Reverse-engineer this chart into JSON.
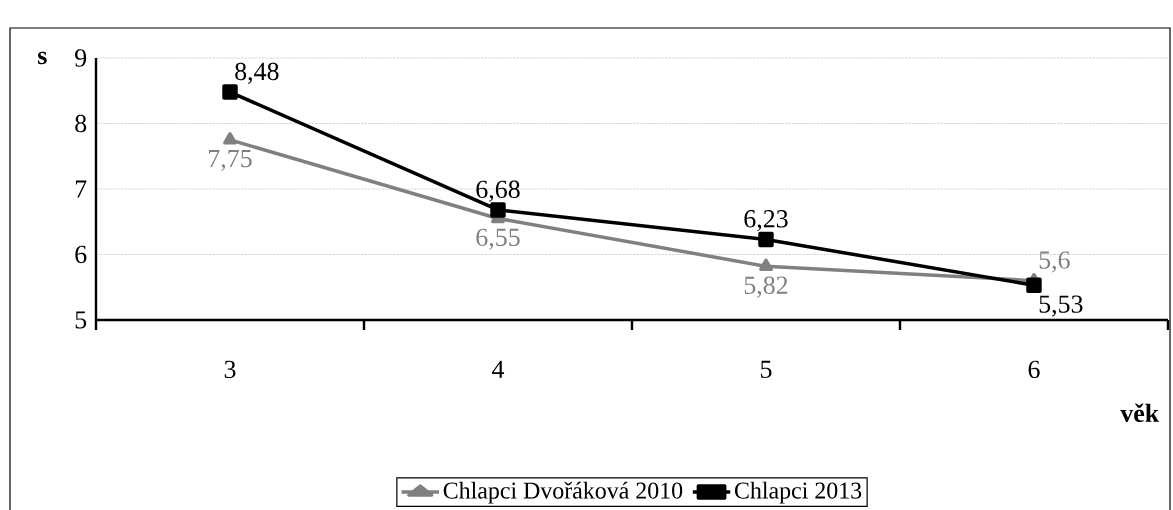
{
  "chart_data": {
    "type": "line",
    "xlabel": "věk",
    "ylabel": "s",
    "categories": [
      "3",
      "4",
      "5",
      "6"
    ],
    "series": [
      {
        "name": "Chlapci Dvořáková 2010",
        "color": "#808080",
        "marker": "triangle",
        "values": [
          7.75,
          6.55,
          5.82,
          5.6
        ],
        "value_labels": [
          "7,75",
          "6,55",
          "5,82",
          "5,6"
        ]
      },
      {
        "name": "Chlapci 2013",
        "color": "#000000",
        "marker": "square",
        "values": [
          8.48,
          6.68,
          6.23,
          5.53
        ],
        "value_labels": [
          "8,48",
          "6,68",
          "6,23",
          "5,53"
        ]
      }
    ],
    "ylim": [
      5,
      9
    ],
    "yticks": [
      5,
      6,
      7,
      8,
      9
    ],
    "grid": "y",
    "legend": "bottom"
  }
}
